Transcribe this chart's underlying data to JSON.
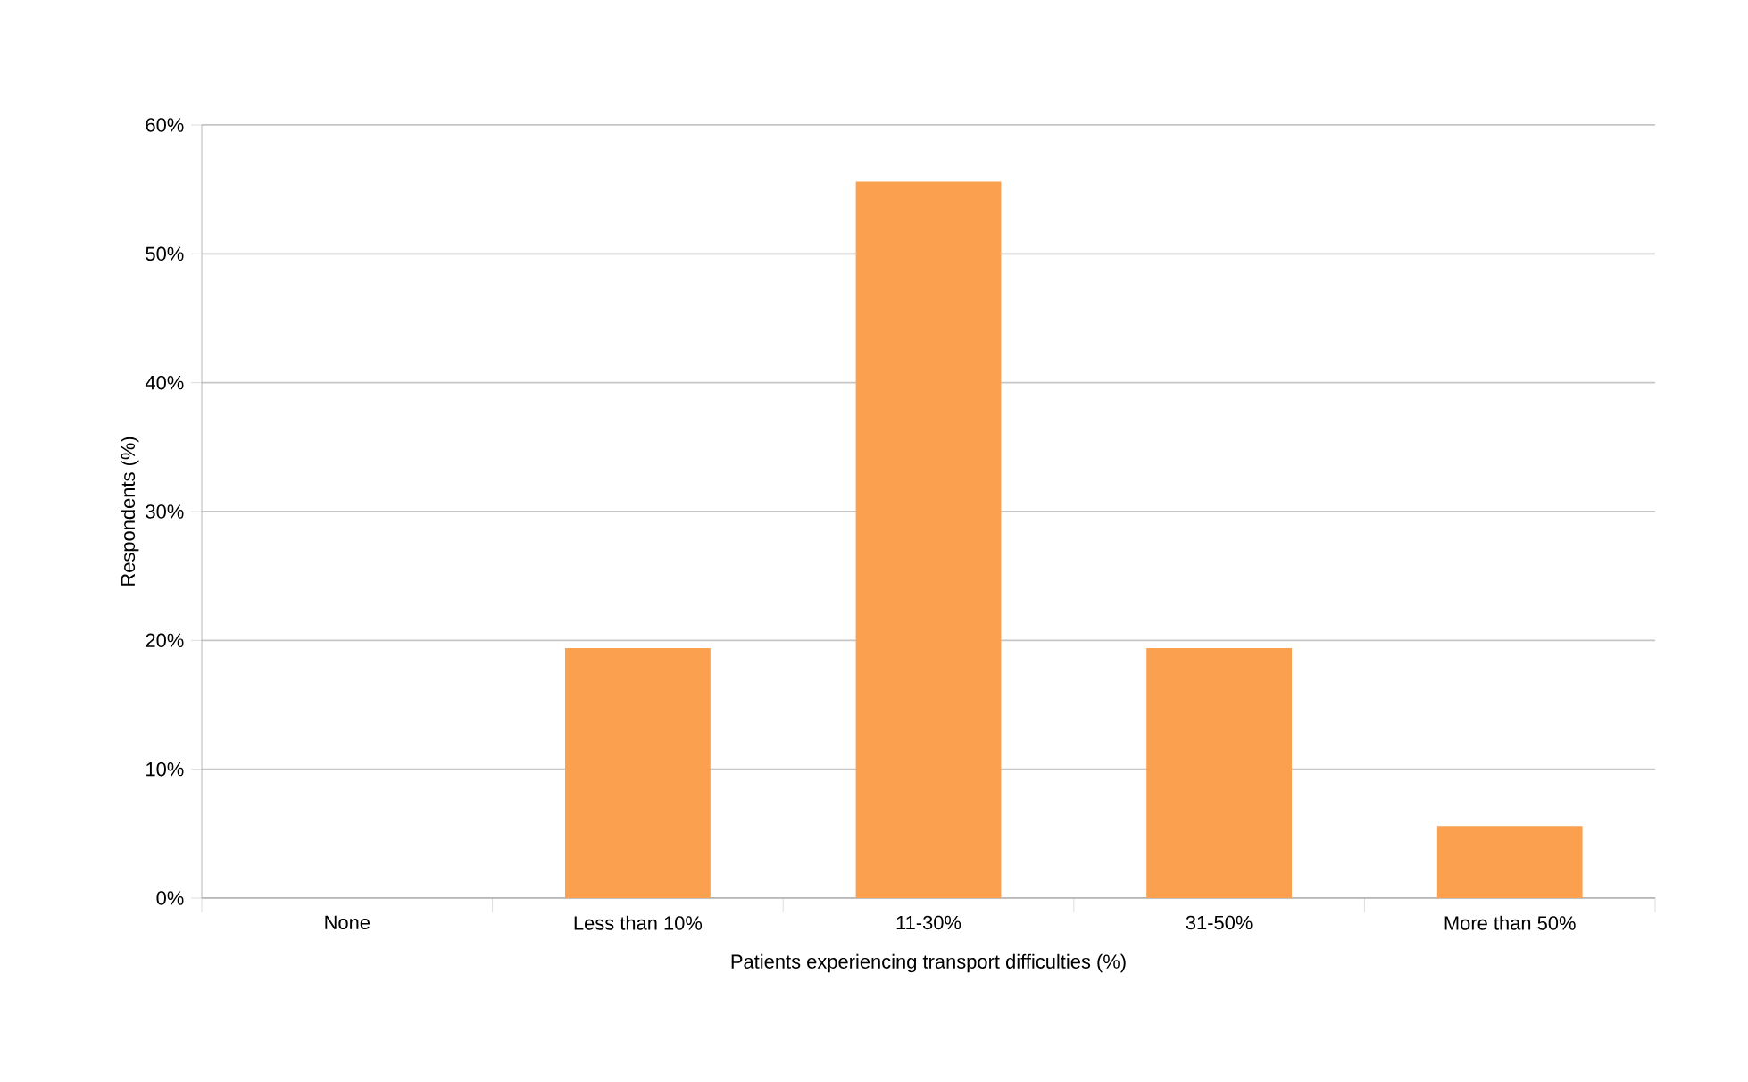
{
  "chart_data": {
    "type": "bar",
    "xlabel": "Patients experiencing transport difficulties (%)",
    "ylabel": "Respondents (%)",
    "categories": [
      "None",
      "Less than 10%",
      "11-30%",
      "31-50%",
      "More than 50%"
    ],
    "values": [
      0,
      19.4,
      55.6,
      19.4,
      5.6
    ],
    "color": "#fba04f",
    "ylim": [
      0,
      60
    ],
    "yticks": [
      {
        "value": 0,
        "label": "0%"
      },
      {
        "value": 10,
        "label": "10%"
      },
      {
        "value": 20,
        "label": "20%"
      },
      {
        "value": 30,
        "label": "30%"
      },
      {
        "value": 40,
        "label": "40%"
      },
      {
        "value": 50,
        "label": "50%"
      },
      {
        "value": 60,
        "label": "60%"
      }
    ],
    "grid": "y"
  }
}
